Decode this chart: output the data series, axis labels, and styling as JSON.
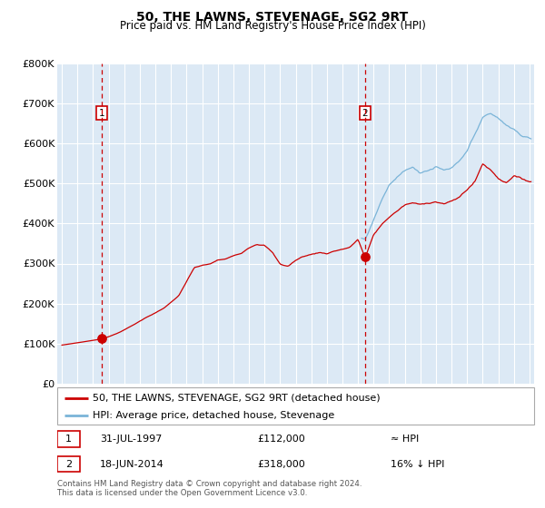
{
  "title": "50, THE LAWNS, STEVENAGE, SG2 9RT",
  "subtitle": "Price paid vs. HM Land Registry's House Price Index (HPI)",
  "bg_color": "#dce9f5",
  "sale1_date_label": "31-JUL-1997",
  "sale1_year": 1997.58,
  "sale1_price": 112000,
  "sale1_note": "≈ HPI",
  "sale2_date_label": "18-JUN-2014",
  "sale2_year": 2014.46,
  "sale2_price": 318000,
  "sale2_note": "16% ↓ HPI",
  "hpi_line_color": "#7ab4d8",
  "price_line_color": "#cc0000",
  "dot_color": "#cc0000",
  "dashed_line_color": "#cc0000",
  "xmin": 1994.7,
  "xmax": 2025.3,
  "ymin": 0,
  "ymax": 800000,
  "yticks": [
    0,
    100000,
    200000,
    300000,
    400000,
    500000,
    600000,
    700000,
    800000
  ],
  "ytick_labels": [
    "£0",
    "£100K",
    "£200K",
    "£300K",
    "£400K",
    "£500K",
    "£600K",
    "£700K",
    "£800K"
  ],
  "legend_label1": "50, THE LAWNS, STEVENAGE, SG2 9RT (detached house)",
  "legend_label2": "HPI: Average price, detached house, Stevenage",
  "footer1": "Contains HM Land Registry data © Crown copyright and database right 2024.",
  "footer2": "This data is licensed under the Open Government Licence v3.0."
}
